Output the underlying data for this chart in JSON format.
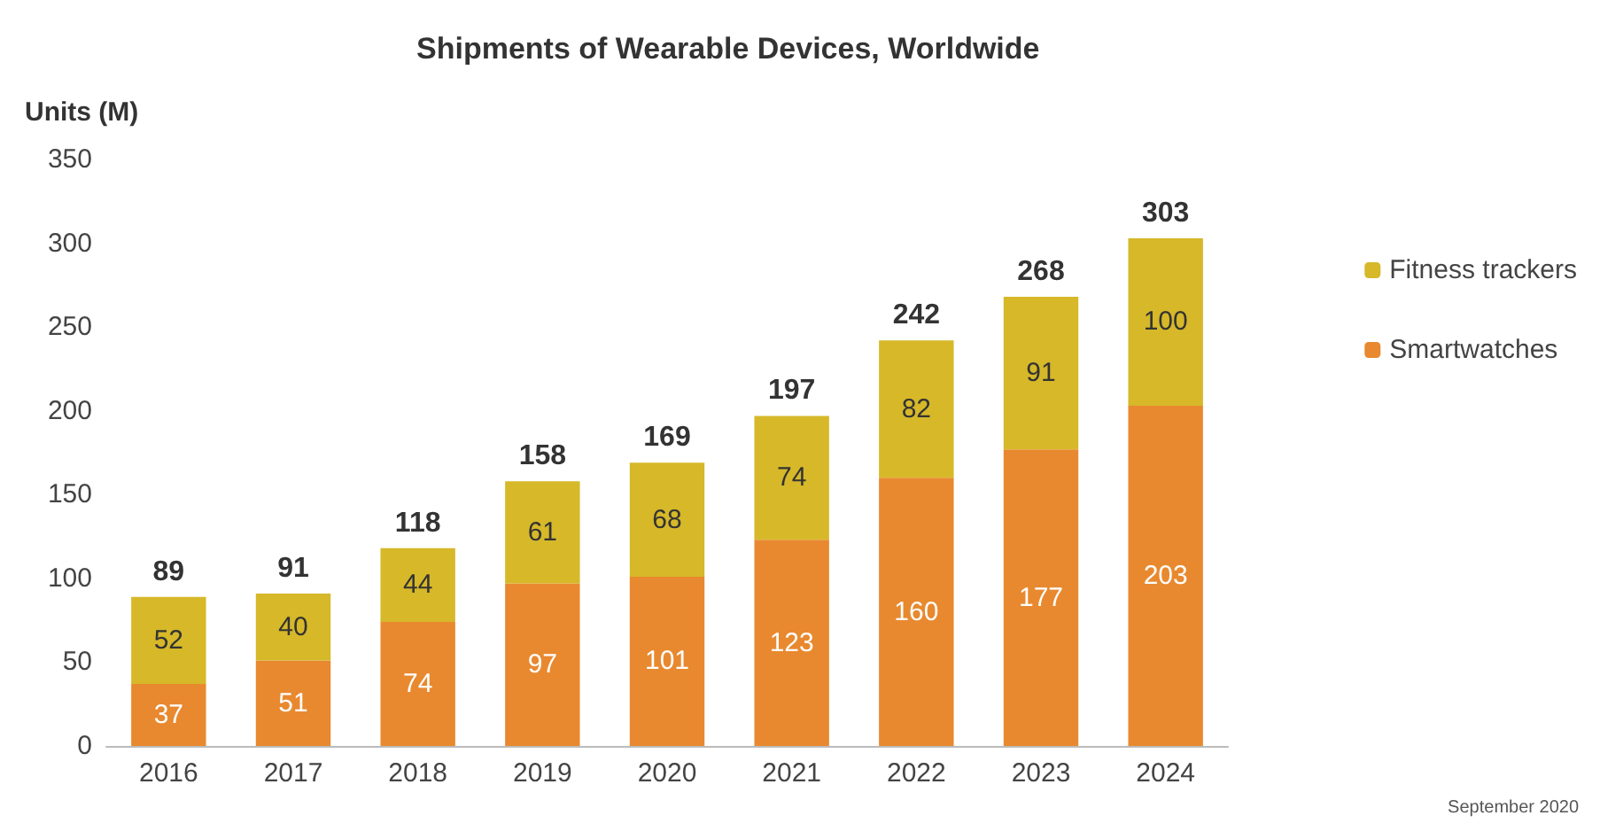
{
  "chart_data": {
    "type": "bar",
    "title": "Shipments of Wearable Devices, Worldwide",
    "ylabel": "Units (M)",
    "categories": [
      "2016",
      "2017",
      "2018",
      "2019",
      "2020",
      "2021",
      "2022",
      "2023",
      "2024"
    ],
    "series": [
      {
        "name": "Smartwatches",
        "color": "#e8892f",
        "values": [
          37,
          51,
          74,
          97,
          101,
          123,
          160,
          177,
          203
        ]
      },
      {
        "name": "Fitness trackers",
        "color": "#d6b829",
        "values": [
          52,
          40,
          44,
          61,
          68,
          74,
          82,
          91,
          100
        ]
      }
    ],
    "stacked": true,
    "data_labels": true,
    "totals": [
      "89",
      "91",
      "118",
      "158",
      "169",
      "197",
      "242",
      "268",
      "303"
    ],
    "ylim": [
      0,
      350
    ],
    "yticks": [
      0,
      50,
      100,
      150,
      200,
      250,
      300,
      350
    ],
    "grid": false,
    "legend": "right",
    "annotations": [
      "September 2020"
    ]
  }
}
